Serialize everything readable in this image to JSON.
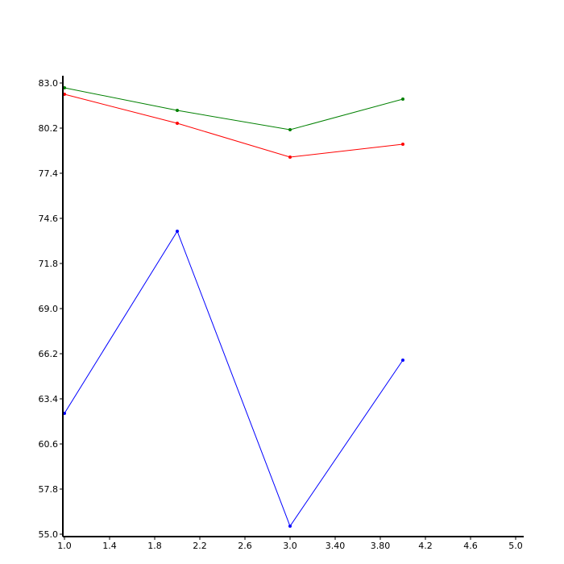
{
  "chart_data": {
    "type": "line",
    "title": "",
    "xlabel": "",
    "ylabel": "",
    "xlim": [
      1.0,
      5.0
    ],
    "ylim": [
      55.0,
      83.0
    ],
    "x_ticks": [
      "1.0",
      "1.4",
      "1.8",
      "2.2",
      "2.6",
      "3.0",
      "3.40",
      "3.80",
      "4.2",
      "4.6",
      "5.0"
    ],
    "y_ticks": [
      "55.0",
      "57.8",
      "60.6",
      "63.4",
      "66.2",
      "69.0",
      "71.8",
      "74.6",
      "77.4",
      "80.2",
      "83.0"
    ],
    "grid": false,
    "legend": "none",
    "series": [
      {
        "color": "#008000",
        "x": [
          1,
          2,
          3,
          4
        ],
        "values": [
          82.7,
          81.3,
          80.1,
          82.0
        ]
      },
      {
        "color": "#ff0000",
        "x": [
          1,
          2,
          3,
          4
        ],
        "values": [
          82.3,
          80.5,
          78.4,
          79.2
        ]
      },
      {
        "color": "#0000ff",
        "x": [
          1,
          2,
          3,
          4
        ],
        "values": [
          62.5,
          73.8,
          55.5,
          65.8
        ]
      }
    ]
  }
}
